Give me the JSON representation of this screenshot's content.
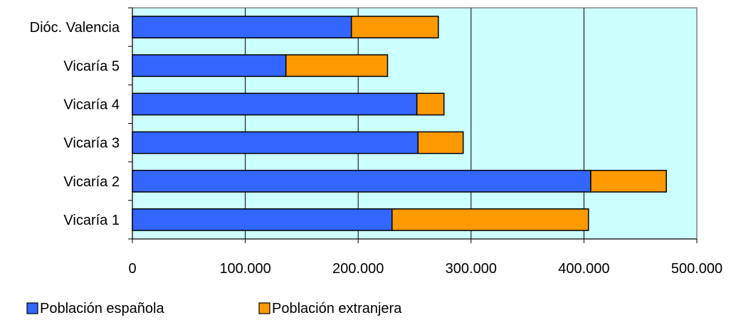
{
  "chart_data": {
    "type": "bar",
    "orientation": "horizontal",
    "stacked": true,
    "categories": [
      "Dióc. Valencia",
      "Vicaría 5",
      "Vicaría 4",
      "Vicaría 3",
      "Vicaría 2",
      "Vicaría 1"
    ],
    "series": [
      {
        "name": "Población española",
        "color": "#3366ff",
        "values": [
          194000,
          136000,
          252000,
          253000,
          406000,
          230000
        ]
      },
      {
        "name": "Población extranjera",
        "color": "#ff9900",
        "values": [
          77000,
          90000,
          24000,
          40000,
          67000,
          174000
        ]
      }
    ],
    "x_ticks": [
      "0",
      "100.000",
      "200.000",
      "300.000",
      "400.000",
      "500.000"
    ],
    "xlim": [
      0,
      500000
    ],
    "title": "",
    "xlabel": "",
    "ylabel": "",
    "grid": "vertical",
    "plot_background": "#ccffff",
    "legend_position": "bottom-left"
  }
}
